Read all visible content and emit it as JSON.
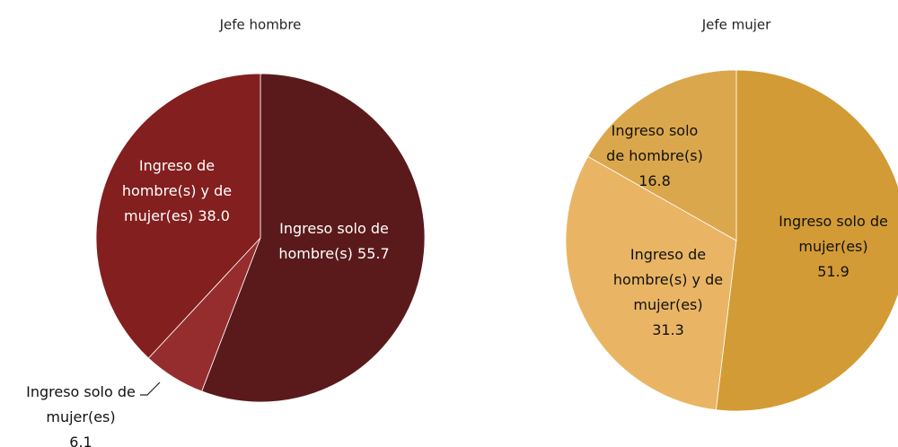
{
  "chart_data": [
    {
      "type": "pie",
      "title": "Jefe hombre",
      "values": [
        55.7,
        6.1,
        38.0
      ],
      "value_labels": [
        [
          "Ingreso solo de",
          "hombre(s) 55.7"
        ],
        [
          "Ingreso solo de",
          "mujer(es)",
          "6.1"
        ],
        [
          "Ingreso de",
          "hombre(s) y de",
          "mujer(es) 38.0"
        ]
      ],
      "colors": [
        "#5a1a1b",
        "#952d2e",
        "#831f1e"
      ]
    },
    {
      "type": "pie",
      "title": "Jefe mujer",
      "values": [
        51.9,
        31.3,
        16.8
      ],
      "value_labels": [
        [
          "Ingreso solo de",
          "mujer(es)",
          "51.9"
        ],
        [
          "Ingreso de",
          "hombre(s) y de",
          "mujer(es)",
          "31.3"
        ],
        [
          "Ingreso solo",
          "de hombre(s)",
          "16.8"
        ]
      ],
      "colors": [
        "#d39b35",
        "#e9b565",
        "#dba74d"
      ]
    }
  ]
}
